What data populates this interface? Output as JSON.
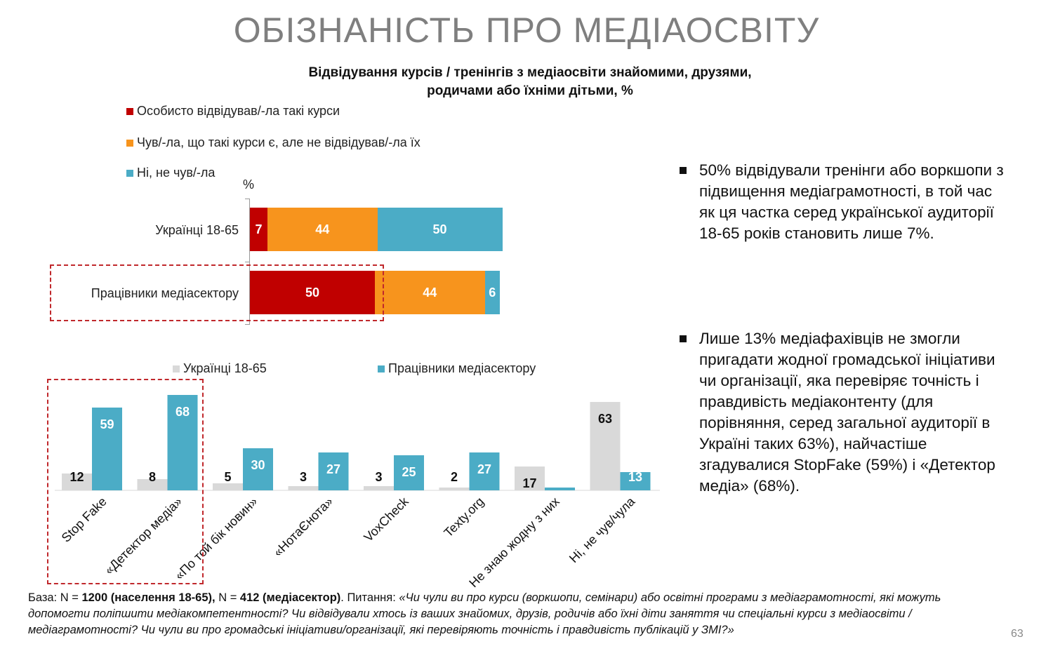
{
  "title": "ОБІЗНАНІСТЬ ПРО МЕДІАОСВІТУ",
  "subtitle_line1": "Відвідування курсів / тренінгів з медіаосвіти знайомими, друзями,",
  "subtitle_line2": "родичами або їхніми дітьми, %",
  "colors": {
    "dark_red": "#c00000",
    "orange": "#f7941d",
    "teal": "#4bacc6",
    "light_gray": "#d9d9d9",
    "title_gray": "#7f7f7f"
  },
  "chart_data": [
    {
      "type": "bar",
      "orientation": "horizontal",
      "stacked": true,
      "unit_label": "%",
      "categories": [
        "Українці 18-65",
        "Працівники медіасектору"
      ],
      "series": [
        {
          "name": "Особисто відвідував/-ла такі курси",
          "color": "#c00000",
          "values": [
            7,
            50
          ]
        },
        {
          "name": "Чув/-ла, що такі курси є, але не відвідував/-ла їх",
          "color": "#f7941d",
          "values": [
            44,
            44
          ]
        },
        {
          "name": "Ні, не чув/-ла",
          "color": "#4bacc6",
          "values": [
            50,
            6
          ]
        }
      ],
      "legend_position": "top-left"
    },
    {
      "type": "bar",
      "orientation": "vertical",
      "categories": [
        "Stop Fake",
        "«Детектор медіа»",
        "«По той бік новин»",
        "«НотаЄнота»",
        "VoxCheck",
        "Texty.org",
        "Не знаю жодну з них",
        "Ні, не чув/чула"
      ],
      "series": [
        {
          "name": "Українці 18-65",
          "color": "#d9d9d9",
          "values": [
            12,
            8,
            5,
            3,
            3,
            2,
            17,
            63
          ],
          "show_labels": [
            true,
            true,
            true,
            true,
            true,
            true,
            true,
            true
          ]
        },
        {
          "name": "Працівники медіасектору",
          "color": "#4bacc6",
          "values": [
            59,
            68,
            30,
            27,
            25,
            27,
            2,
            13
          ],
          "show_labels": [
            true,
            true,
            true,
            true,
            true,
            true,
            false,
            true
          ]
        }
      ],
      "legend_position": "top",
      "ylim": [
        0,
        70
      ]
    }
  ],
  "bullets": [
    "50% відвідували тренінги або воркшопи з підвищення медіаграмотності, в той час як ця частка серед української аудиторії 18-65 років становить лише 7%.",
    "Лише 13% медіафахівців не змогли пригадати жодної громадської ініціативи чи організації, яка перевіряє точність і правдивість медіаконтенту (для порівняння, серед загальної аудиторії в Україні таких 63%), найчастіше згадувалися StopFake (59%) і «Детектор медіа» (68%)."
  ],
  "footer": {
    "base_label": "База: N = ",
    "base_n1": "1200 (населення 18-65),",
    "base_mid": " N = ",
    "base_n2": "412 (медіасектор)",
    "question_label": ". Питання: ",
    "question_text": "«Чи чули ви про курси (воркшопи, семінари) або освітні програми з медіаграмотності, які можуть допомогти поліпшити медіакомпетентності? Чи відвідували хтось із ваших знайомих, друзів, родичів або їхні діти заняття чи спеціальні курси з медіаосвіти / медіаграмотності? Чи чули ви про громадські ініціативи/організації, які перевіряють точність і правдивість публікацій у ЗМІ?»"
  },
  "page_number": "63"
}
